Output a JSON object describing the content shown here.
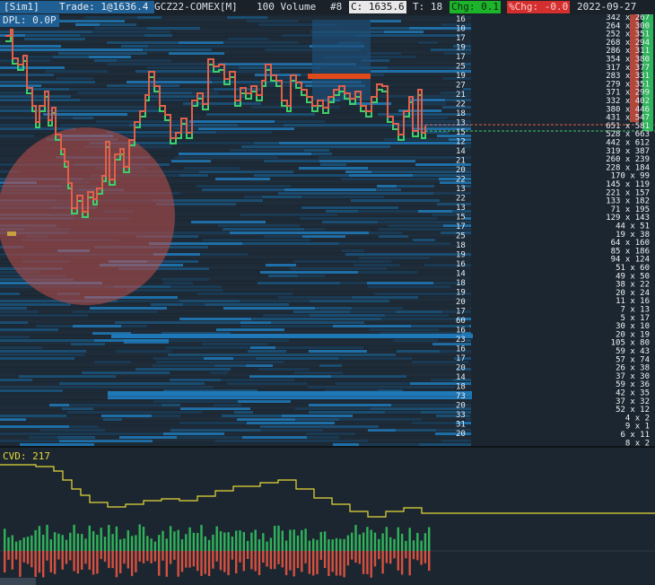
{
  "header": {
    "account": "[Sim1]",
    "trade": "Trade: 1@1636.4",
    "symbol": "GCZ22-COMEX[M]",
    "volume": "100 Volume",
    "bar_count": "#8",
    "close": "C: 1635.6",
    "ticks": "T: 18",
    "chg": "Chg: 0.1",
    "pchg": "%Chg: -0.0",
    "date": "2022-09-27"
  },
  "dpl": "DPL: 0.0P",
  "cvd_label": "CVD: 217",
  "colors": {
    "background": "#1c2630",
    "price_line": "#e0604a",
    "price_line_low": "#3ecf6a",
    "cvd_line": "#e6d93a",
    "buy_volume": "#2fb35a",
    "sell_volume": "#d85040",
    "bubble": "#c0504d",
    "liquidity": "#1e6fa8",
    "pchg_bg": "#d32f2f",
    "chg_bg": "#1db32b"
  },
  "ladder_left": [
    "16",
    "10",
    "17",
    "19",
    "17",
    "25",
    "19",
    "27",
    "21",
    "22",
    "18",
    "13",
    "15",
    "12",
    "14",
    "21",
    "20",
    "22",
    "13",
    "22",
    "13",
    "15",
    "17",
    "25",
    "18",
    "19",
    "16",
    "14",
    "18",
    "19",
    "20",
    "17",
    "60",
    "16",
    "23",
    "16",
    "17",
    "20",
    "14",
    "18",
    "73",
    "20",
    "33",
    "31",
    "20"
  ],
  "ladder_right": [
    "342 x 267",
    "264 x 300",
    "252 x 351",
    "268 x 294",
    "286 x 311",
    "354 x 380",
    "317 x 377",
    "283 x 331",
    "279 x 351",
    "371 x 299",
    "332 x 402",
    "380 x 446",
    "431 x 547",
    "651 x 581",
    "528 x 663",
    "442 x 612",
    "319 x 387",
    "260 x 239",
    "228 x 184",
    "170 x 99",
    "145 x 119",
    "221 x 157",
    "133 x 182",
    "71 x 195",
    "129 x 143",
    "44 x 51",
    "19 x 38",
    "64 x 160",
    "85 x 186",
    "94 x 124",
    "51 x 60",
    "49 x 50",
    "38 x 22",
    "20 x 24",
    "11 x 16",
    "7 x 13",
    "5 x 17",
    "30 x 10",
    "20 x 19",
    "105 x 80",
    "59 x 43",
    "57 x 74",
    "26 x 38",
    "37 x 30",
    "59 x 36",
    "42 x 35",
    "37 x 32",
    "52 x 12",
    "4 x 2",
    "9 x 1",
    "6 x 11",
    "8 x 2"
  ]
}
